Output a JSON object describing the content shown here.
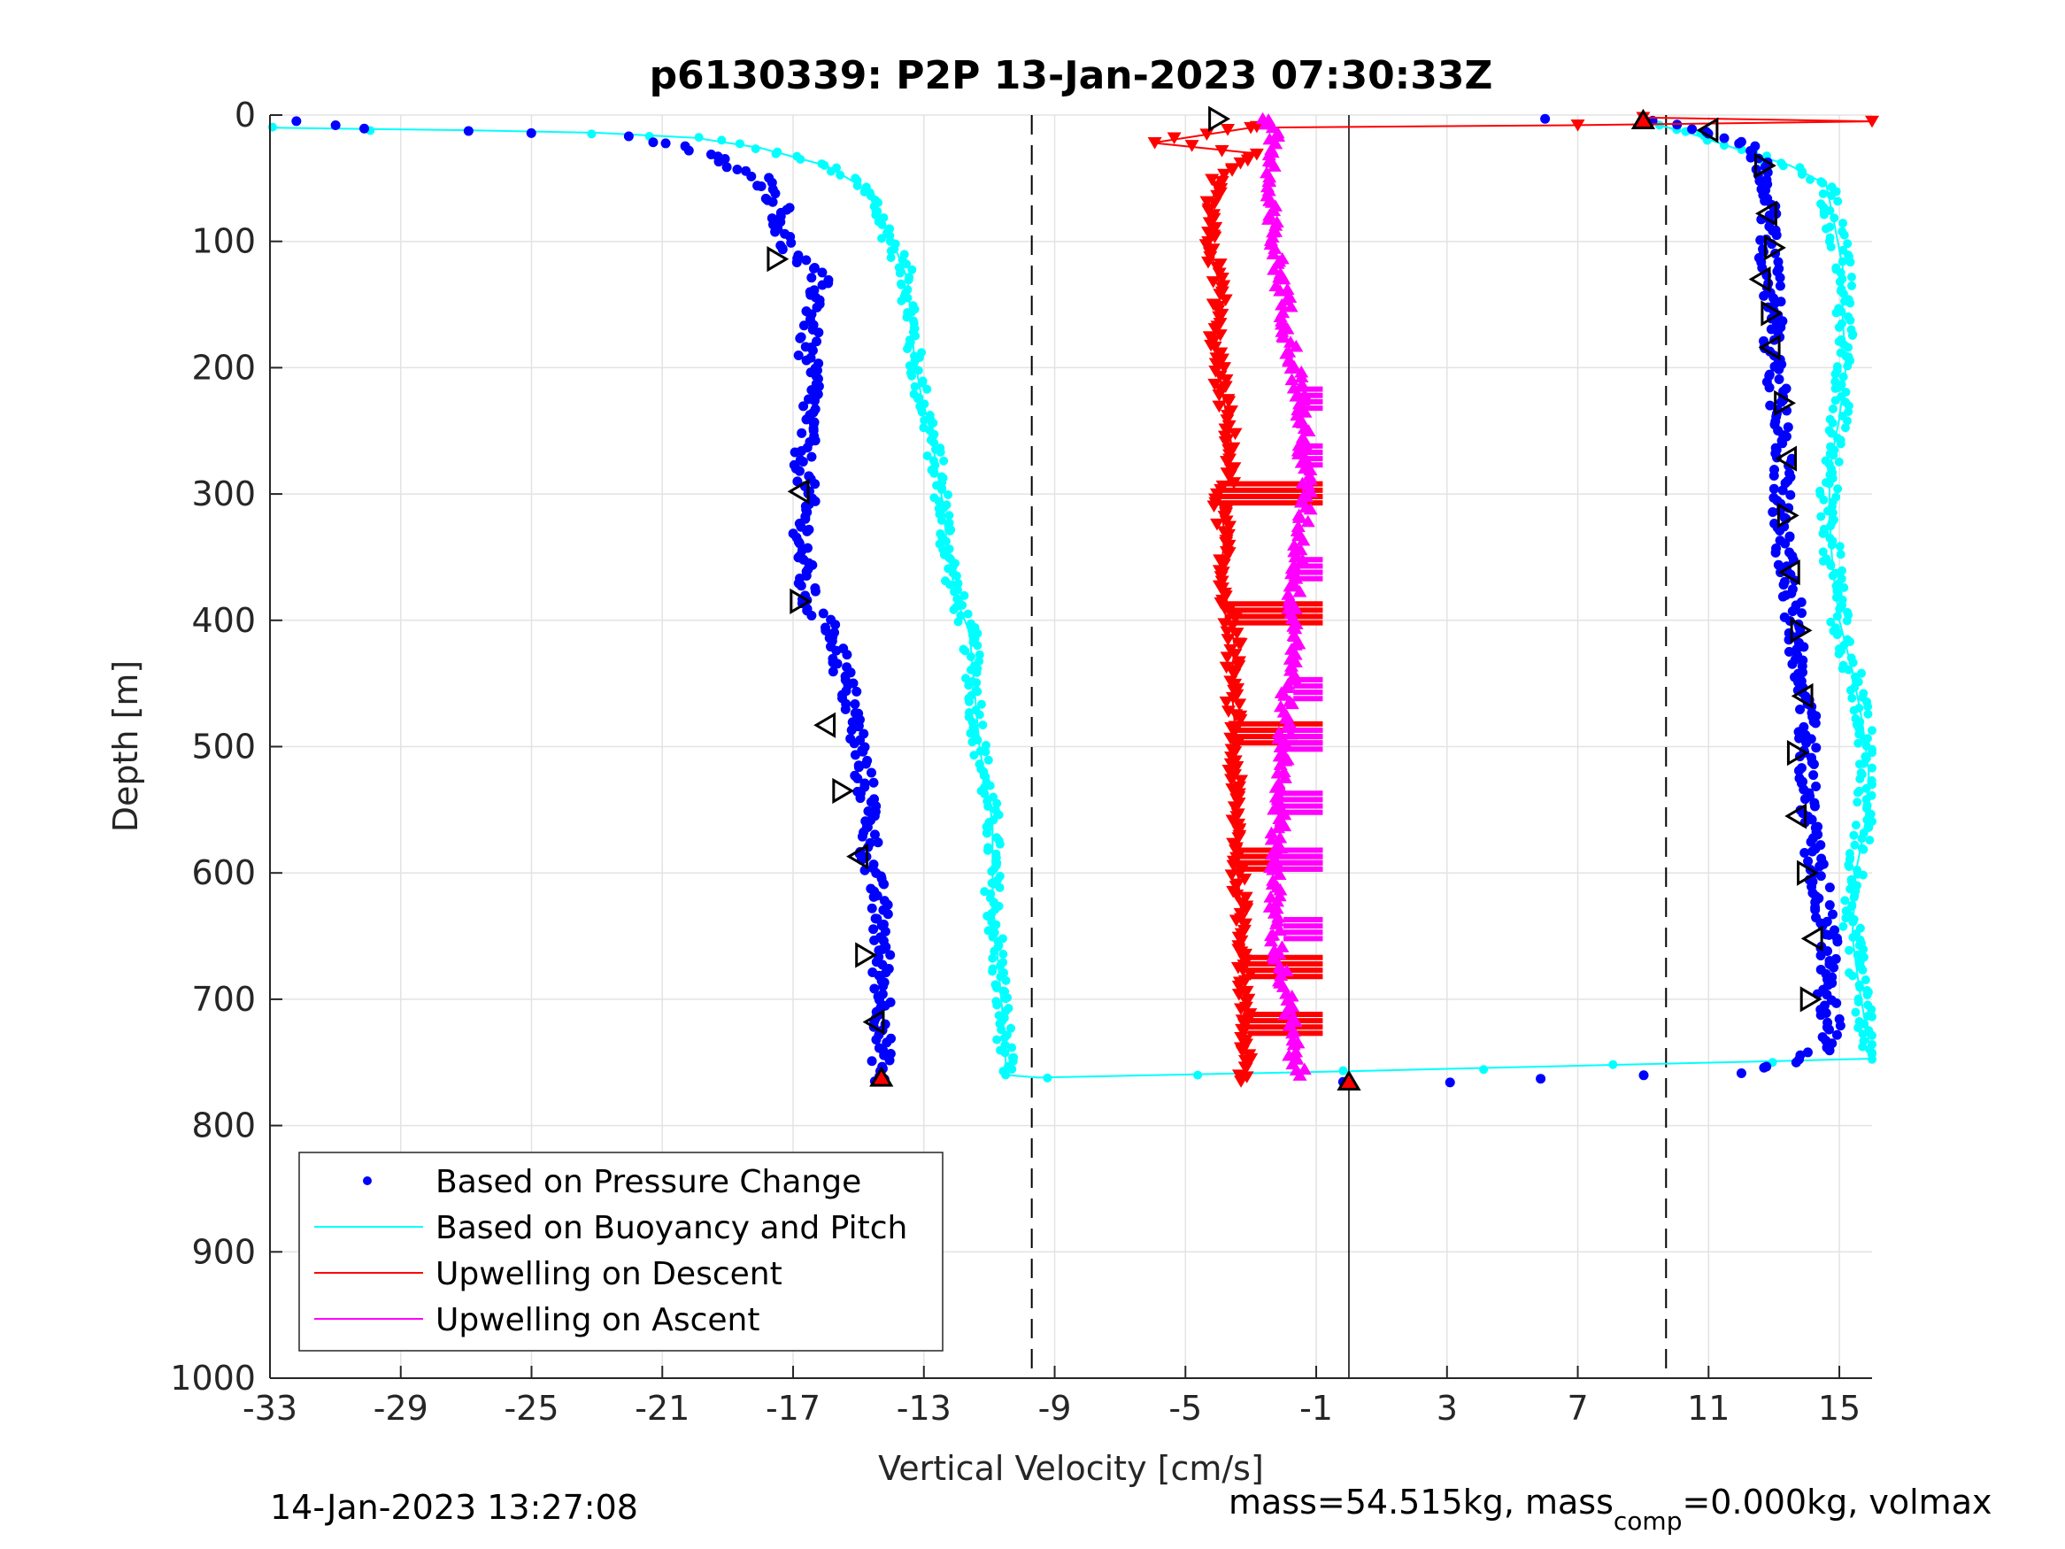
{
  "chart_data": {
    "type": "scatter",
    "title": "p6130339: P2P 13-Jan-2023 07:30:33Z",
    "xlabel": "Vertical Velocity [cm/s]",
    "ylabel": "Depth [m]",
    "xlim": [
      -33,
      16
    ],
    "ylim": [
      0,
      1000
    ],
    "y_reversed": true,
    "grid": true,
    "xticks": [
      -33,
      -29,
      -25,
      -21,
      -17,
      -13,
      -9,
      -5,
      -1,
      3,
      7,
      11,
      15
    ],
    "yticks": [
      0,
      100,
      200,
      300,
      400,
      500,
      600,
      700,
      800,
      900,
      1000
    ],
    "reference_lines": {
      "dashed_x": [
        -9.7,
        9.7
      ],
      "solid_x": 0
    },
    "legend_position": "lower-left",
    "series": [
      {
        "name": "Based on Pressure Change",
        "color": "#0000ff",
        "marker": "dot",
        "descent": [
          [
            -32,
            5
          ],
          [
            -30,
            10
          ],
          [
            -27,
            12
          ],
          [
            -25,
            15
          ],
          [
            -22,
            18
          ],
          [
            -20,
            28
          ],
          [
            -19,
            38
          ],
          [
            -18,
            48
          ],
          [
            -17.7,
            60
          ],
          [
            -17.3,
            75
          ],
          [
            -17.4,
            90
          ],
          [
            -17.2,
            105
          ],
          [
            -16.2,
            130
          ],
          [
            -16.3,
            150
          ],
          [
            -16.5,
            170
          ],
          [
            -16.6,
            190
          ],
          [
            -16.4,
            210
          ],
          [
            -16.5,
            240
          ],
          [
            -16.7,
            270
          ],
          [
            -16.6,
            300
          ],
          [
            -16.7,
            330
          ],
          [
            -16.7,
            360
          ],
          [
            -16.5,
            390
          ],
          [
            -15.7,
            410
          ],
          [
            -15.5,
            440
          ],
          [
            -15.2,
            470
          ],
          [
            -15,
            500
          ],
          [
            -14.8,
            530
          ],
          [
            -14.6,
            560
          ],
          [
            -14.7,
            590
          ],
          [
            -14.4,
            620
          ],
          [
            -14.3,
            650
          ],
          [
            -14.3,
            680
          ],
          [
            -14.2,
            710
          ],
          [
            -14.3,
            740
          ],
          [
            -14.3,
            755
          ],
          [
            -14.5,
            765
          ]
        ],
        "ascent": [
          [
            0,
            765
          ],
          [
            3,
            765
          ],
          [
            6,
            763
          ],
          [
            9,
            760
          ],
          [
            12,
            758
          ],
          [
            13.5,
            750
          ],
          [
            14.5,
            740
          ],
          [
            14.8,
            720
          ],
          [
            14.6,
            700
          ],
          [
            14.7,
            670
          ],
          [
            14.6,
            640
          ],
          [
            14.4,
            610
          ],
          [
            14.2,
            580
          ],
          [
            14.1,
            550
          ],
          [
            14,
            520
          ],
          [
            14,
            490
          ],
          [
            14,
            460
          ],
          [
            13.8,
            430
          ],
          [
            13.6,
            400
          ],
          [
            13.5,
            370
          ],
          [
            13.3,
            340
          ],
          [
            13.2,
            310
          ],
          [
            13.3,
            280
          ],
          [
            13.2,
            250
          ],
          [
            13.1,
            220
          ],
          [
            12.9,
            190
          ],
          [
            13,
            160
          ],
          [
            12.9,
            130
          ],
          [
            12.8,
            100
          ],
          [
            12.9,
            70
          ],
          [
            12.7,
            40
          ],
          [
            12,
            20
          ],
          [
            10.5,
            10
          ],
          [
            9,
            5
          ],
          [
            6,
            3
          ]
        ]
      },
      {
        "name": "Based on Buoyancy and Pitch",
        "color": "#00ffff",
        "marker": "line+dot",
        "descent": [
          [
            -33,
            10
          ],
          [
            -30,
            11
          ],
          [
            -27,
            12
          ],
          [
            -23,
            14
          ],
          [
            -20,
            18
          ],
          [
            -18,
            26
          ],
          [
            -16,
            40
          ],
          [
            -15,
            55
          ],
          [
            -14.5,
            70
          ],
          [
            -14.2,
            90
          ],
          [
            -13.8,
            110
          ],
          [
            -13.5,
            130
          ],
          [
            -13.4,
            160
          ],
          [
            -13.3,
            190
          ],
          [
            -13.1,
            220
          ],
          [
            -12.8,
            250
          ],
          [
            -12.6,
            280
          ],
          [
            -12.4,
            310
          ],
          [
            -12.3,
            340
          ],
          [
            -12.1,
            370
          ],
          [
            -11.9,
            390
          ],
          [
            -11.6,
            410
          ],
          [
            -11.5,
            440
          ],
          [
            -11.4,
            470
          ],
          [
            -11.3,
            500
          ],
          [
            -11.1,
            530
          ],
          [
            -10.9,
            560
          ],
          [
            -10.9,
            590
          ],
          [
            -10.9,
            620
          ],
          [
            -10.8,
            650
          ],
          [
            -10.7,
            680
          ],
          [
            -10.6,
            710
          ],
          [
            -10.5,
            740
          ],
          [
            -10.5,
            760
          ]
        ],
        "ascent": [
          [
            -9.5,
            762
          ],
          [
            0,
            757
          ],
          [
            8,
            752
          ],
          [
            13,
            749
          ],
          [
            16,
            747
          ],
          [
            15.8,
            720
          ],
          [
            15.6,
            690
          ],
          [
            15.4,
            650
          ],
          [
            15.5,
            600
          ],
          [
            15.8,
            560
          ],
          [
            15.9,
            520
          ],
          [
            15.7,
            480
          ],
          [
            15.4,
            440
          ],
          [
            15,
            400
          ],
          [
            14.8,
            360
          ],
          [
            14.7,
            320
          ],
          [
            14.7,
            280
          ],
          [
            15,
            240
          ],
          [
            15.2,
            200
          ],
          [
            15.1,
            160
          ],
          [
            15.1,
            120
          ],
          [
            14.8,
            80
          ],
          [
            14.6,
            55
          ],
          [
            13.5,
            40
          ],
          [
            12,
            28
          ],
          [
            10.5,
            15
          ],
          [
            9.5,
            8
          ]
        ]
      },
      {
        "name": "Upwelling on Descent",
        "color": "#ff0000",
        "marker": "down-triangle",
        "points": [
          [
            9,
            2
          ],
          [
            16,
            5
          ],
          [
            7,
            8
          ],
          [
            -3,
            10
          ],
          [
            -6,
            22
          ],
          [
            -3,
            30
          ],
          [
            -4,
            50
          ],
          [
            -4.3,
            80
          ],
          [
            -4.2,
            110
          ],
          [
            -3.9,
            140
          ],
          [
            -4.1,
            170
          ],
          [
            -4,
            200
          ],
          [
            -3.8,
            230
          ],
          [
            -3.6,
            260
          ],
          [
            -3.7,
            290
          ],
          [
            -4,
            300
          ],
          [
            -3.8,
            330
          ],
          [
            -3.9,
            360
          ],
          [
            -3.7,
            390
          ],
          [
            -3.5,
            420
          ],
          [
            -3.6,
            450
          ],
          [
            -3.5,
            480
          ],
          [
            -3.5,
            510
          ],
          [
            -3.5,
            540
          ],
          [
            -3.4,
            570
          ],
          [
            -3.4,
            600
          ],
          [
            -3.3,
            630
          ],
          [
            -3.2,
            660
          ],
          [
            -3.2,
            690
          ],
          [
            -3.2,
            720
          ],
          [
            -3.1,
            750
          ],
          [
            -3.3,
            765
          ]
        ],
        "extensions": [
          [
            -4,
            300,
            -0.8
          ],
          [
            -3.8,
            395,
            -0.8
          ],
          [
            -3.5,
            490,
            -0.8
          ],
          [
            -3.4,
            590,
            -0.8
          ],
          [
            -3.2,
            675,
            -0.8
          ],
          [
            -3.1,
            720,
            -0.8
          ]
        ]
      },
      {
        "name": "Upwelling on Ascent",
        "color": "#ff00ff",
        "marker": "up-triangle",
        "points": [
          [
            -2.5,
            2
          ],
          [
            -2.3,
            20
          ],
          [
            -2.5,
            60
          ],
          [
            -2.3,
            100
          ],
          [
            -2.0,
            140
          ],
          [
            -1.8,
            180
          ],
          [
            -1.5,
            220
          ],
          [
            -1.4,
            260
          ],
          [
            -1.3,
            300
          ],
          [
            -1.5,
            340
          ],
          [
            -1.7,
            380
          ],
          [
            -1.6,
            420
          ],
          [
            -1.9,
            460
          ],
          [
            -2.0,
            500
          ],
          [
            -2.1,
            540
          ],
          [
            -2.2,
            580
          ],
          [
            -2.3,
            620
          ],
          [
            -2.2,
            660
          ],
          [
            -1.9,
            700
          ],
          [
            -1.7,
            740
          ],
          [
            -1.5,
            760
          ]
        ],
        "extensions": [
          [
            -1.6,
            225,
            -0.8
          ],
          [
            -1.5,
            270,
            -0.8
          ],
          [
            -1.6,
            360,
            -0.8
          ],
          [
            -1.7,
            455,
            -0.8
          ],
          [
            -2.0,
            495,
            -0.8
          ],
          [
            -2.2,
            545,
            -0.8
          ],
          [
            -2.3,
            590,
            -0.8
          ],
          [
            -2.0,
            645,
            -0.8
          ]
        ]
      }
    ],
    "highlight_markers": [
      [
        -17.5,
        114
      ],
      [
        -16.8,
        298
      ],
      [
        -16.8,
        385
      ],
      [
        -16,
        483
      ],
      [
        -15.5,
        535
      ],
      [
        -15,
        587
      ],
      [
        -14.8,
        665
      ],
      [
        -14.5,
        718
      ],
      [
        -4,
        3
      ],
      [
        11,
        12
      ],
      [
        12.7,
        40
      ],
      [
        12.8,
        78
      ],
      [
        13,
        105
      ],
      [
        12.6,
        130
      ],
      [
        12.9,
        157
      ],
      [
        12.9,
        184
      ],
      [
        13.3,
        228
      ],
      [
        13.4,
        272
      ],
      [
        13.4,
        317
      ],
      [
        13.5,
        362
      ],
      [
        13.8,
        408
      ],
      [
        13.9,
        460
      ],
      [
        13.7,
        505
      ],
      [
        13.7,
        555
      ],
      [
        14,
        600
      ],
      [
        14.2,
        652
      ],
      [
        14.1,
        700
      ]
    ],
    "red_highlights": [
      [
        -14.3,
        762
      ],
      [
        0,
        765
      ],
      [
        9,
        4
      ]
    ]
  },
  "footer": {
    "timestamp": "14-Jan-2023 13:27:08",
    "mass_prefix": "mass=54.515kg, mass",
    "mass_sub": "comp",
    "mass_suffix": "=0.000kg, volmax"
  }
}
